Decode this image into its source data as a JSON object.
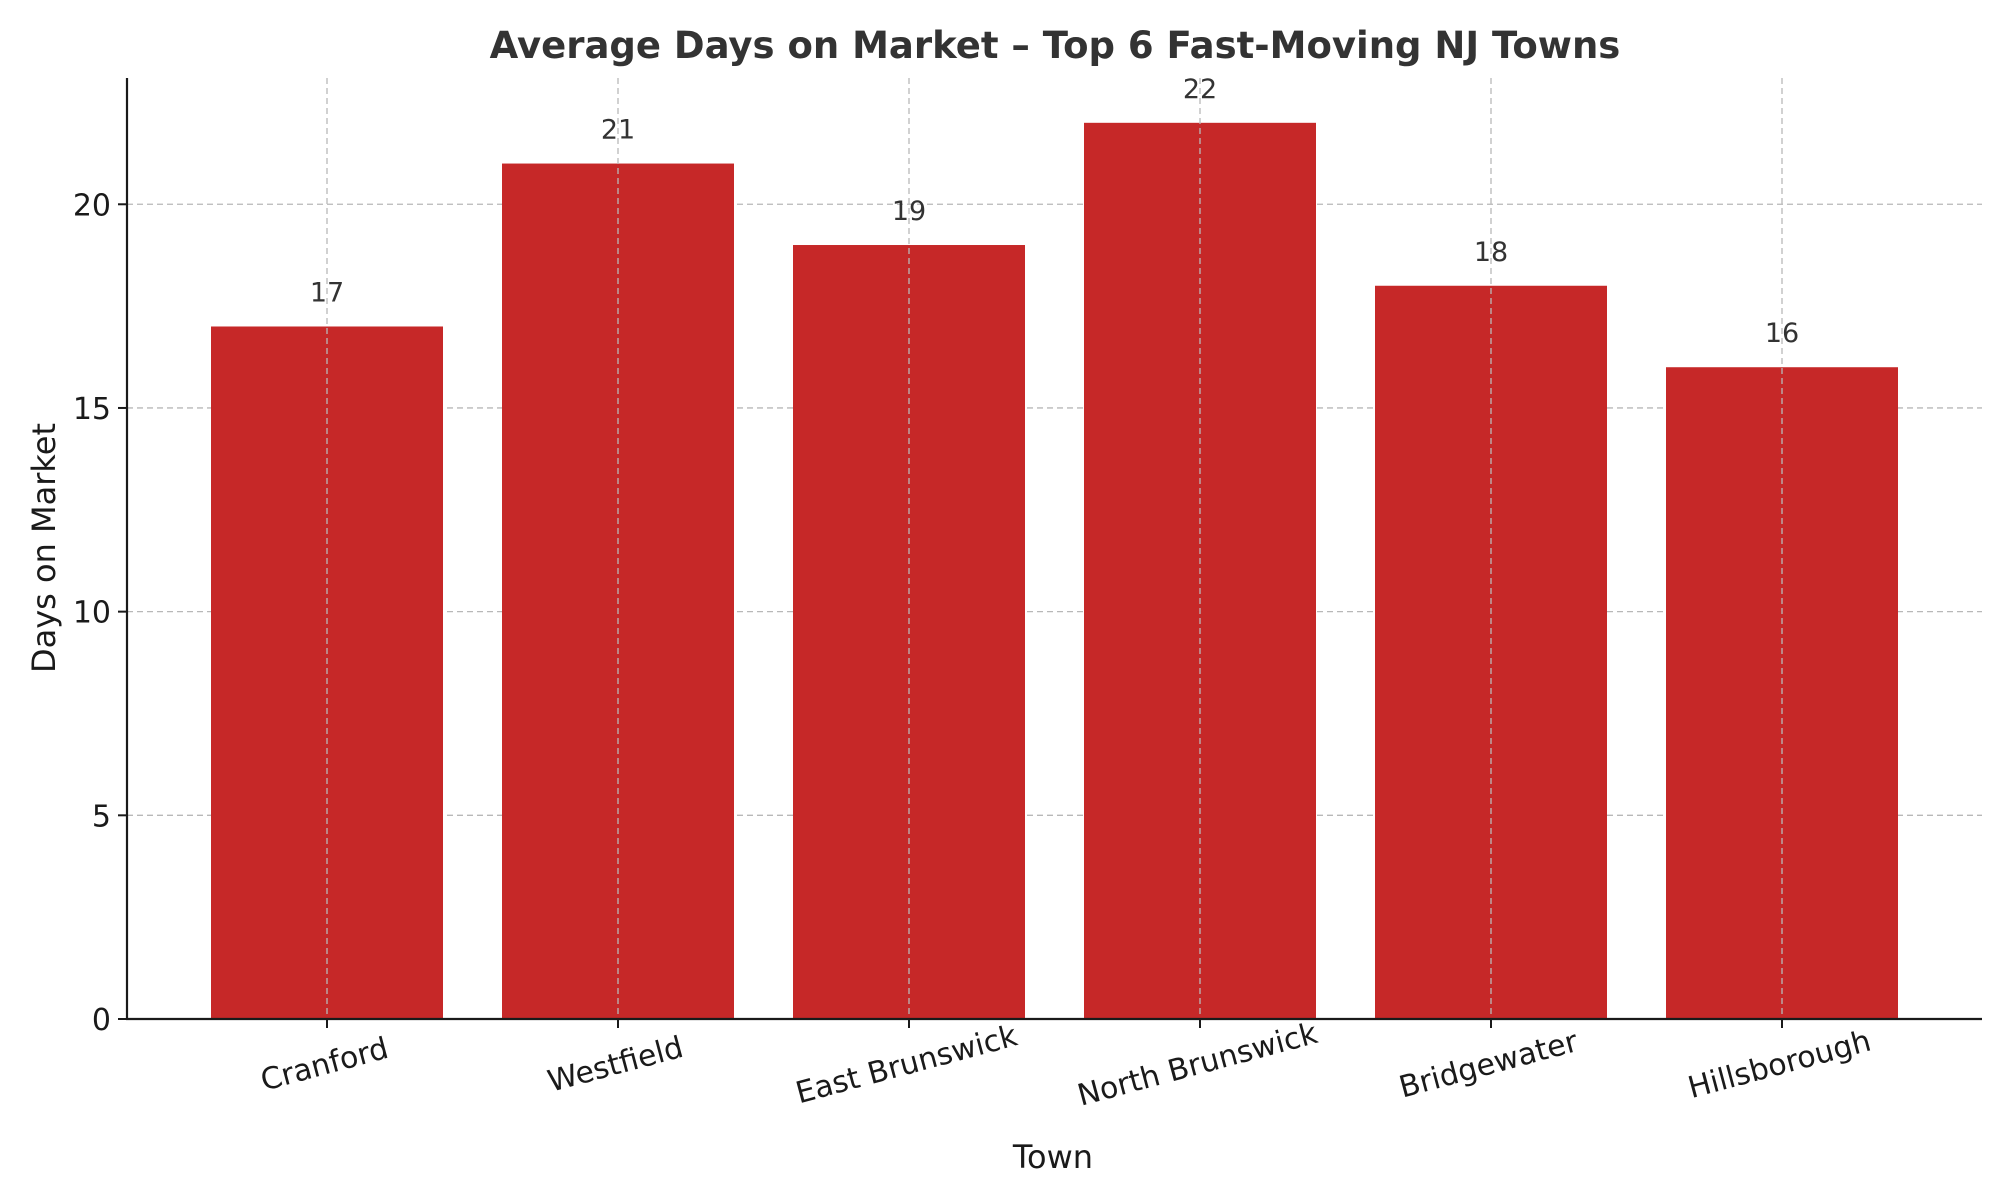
{
  "chart_data": {
    "type": "bar",
    "title": "Average Days on Market – Top 6 Fast-Moving NJ Towns",
    "xlabel": "Town",
    "ylabel": "Days on Market",
    "categories": [
      "Cranford",
      "Westfield",
      "East Brunswick",
      "North Brunswick",
      "Bridgewater",
      "Hillsborough"
    ],
    "values": [
      17,
      21,
      19,
      22,
      18,
      16
    ],
    "data_labels": [
      "17",
      "21",
      "19",
      "22",
      "18",
      "16"
    ],
    "yticks": [
      0,
      5,
      10,
      15,
      20
    ],
    "ytick_labels": [
      "0",
      "5",
      "10",
      "15",
      "20"
    ],
    "ylim": [
      0,
      23.1
    ],
    "grid": true,
    "bar_color": "#c62828"
  }
}
